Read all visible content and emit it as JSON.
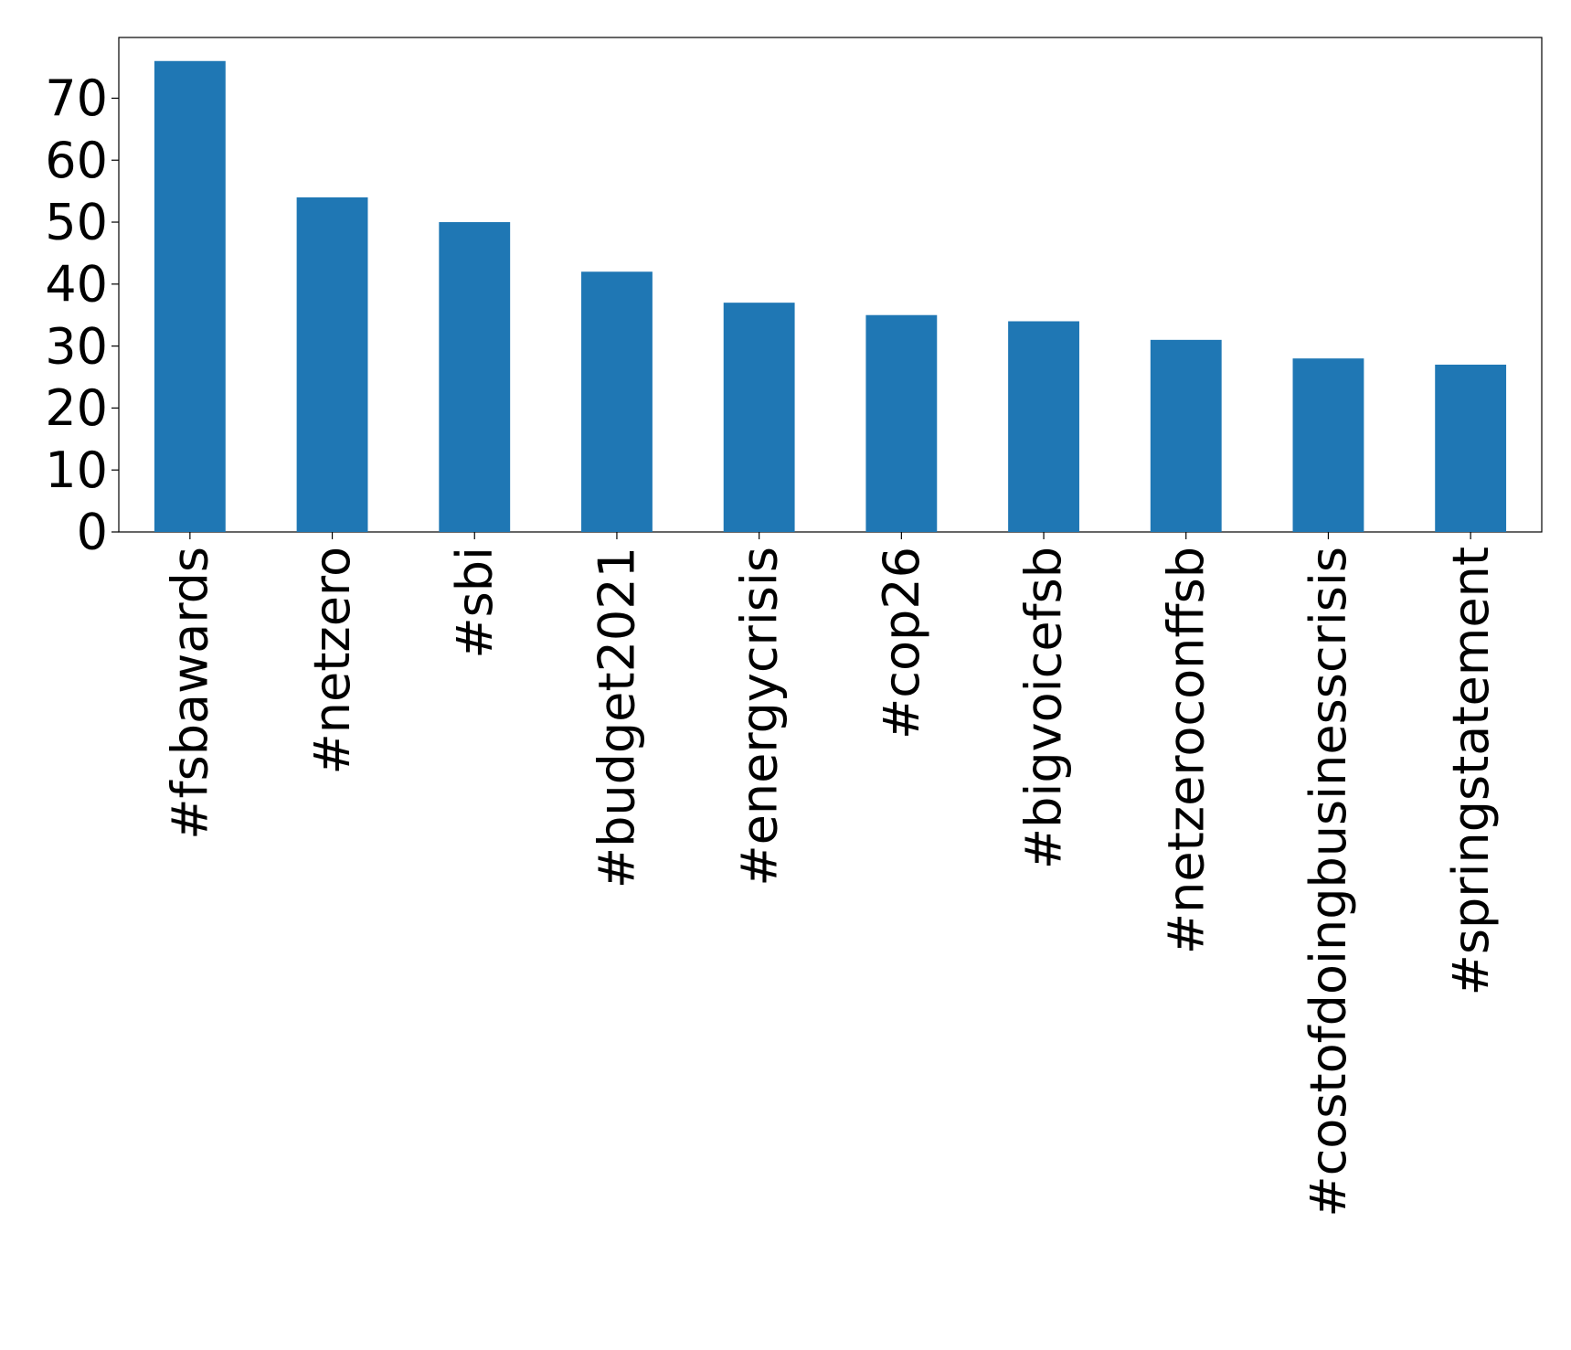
{
  "chart_data": {
    "type": "bar",
    "categories": [
      "#fsbawards",
      "#netzero",
      "#sbi",
      "#budget2021",
      "#energycrisis",
      "#cop26",
      "#bigvoicefsb",
      "#netzeroconffsb",
      "#costofdoingbusinesscrisis",
      "#springstatement"
    ],
    "values": [
      76,
      54,
      50,
      42,
      37,
      35,
      34,
      31,
      28,
      27
    ],
    "color": "#1f77b4",
    "ylim": [
      0,
      79.8
    ],
    "yticks": [
      0,
      10,
      20,
      30,
      40,
      50,
      60,
      70
    ],
    "grid": false
  }
}
